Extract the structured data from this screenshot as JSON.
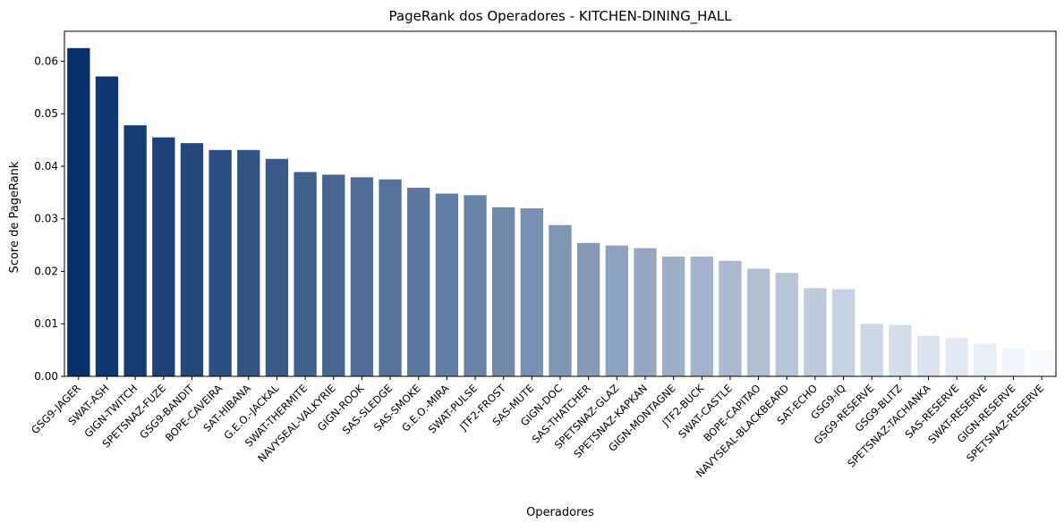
{
  "chart_data": {
    "type": "bar",
    "title": "PageRank dos Operadores - KITCHEN-DINING_HALL",
    "xlabel": "Operadores",
    "ylabel": "Score de PageRank",
    "ylim": [
      0,
      0.0657
    ],
    "yticks": [
      "0.00",
      "0.01",
      "0.02",
      "0.03",
      "0.04",
      "0.05",
      "0.06"
    ],
    "grid": false,
    "legend": "none",
    "palette": "Blues_r",
    "color_dark": "#08306b",
    "color_light": "#f7fbff",
    "categories": [
      "GSG9-JAGER",
      "SWAT-ASH",
      "GIGN-TWITCH",
      "SPETSNAZ-FUZE",
      "GSG9-BANDIT",
      "BOPE-CAVEIRA",
      "SAT-HIBANA",
      "G.E.O.-JACKAL",
      "SWAT-THERMITE",
      "NAVYSEAL-VALKYRIE",
      "GIGN-ROOK",
      "SAS-SLEDGE",
      "SAS-SMOKE",
      "G.E.O.-MIRA",
      "SWAT-PULSE",
      "JTF2-FROST",
      "SAS-MUTE",
      "GIGN-DOC",
      "SAS-THATCHER",
      "SPETSNAZ-GLAZ",
      "SPETSNAZ-KAPKAN",
      "GIGN-MONTAGNE",
      "JTF2-BUCK",
      "SWAT-CASTLE",
      "BOPE-CAPITAO",
      "NAVYSEAL-BLACKBEARD",
      "SAT-ECHO",
      "GSG9-IQ",
      "GSG9-RESERVE",
      "GSG9-BLITZ",
      "SPETSNAZ-TACHANKA",
      "SAS-RESERVE",
      "SWAT-RESERVE",
      "GIGN-RESERVE",
      "SPETSNAZ-RESERVE"
    ],
    "values": [
      0.0625,
      0.0571,
      0.0478,
      0.0455,
      0.0444,
      0.0431,
      0.0431,
      0.0414,
      0.0389,
      0.0384,
      0.0379,
      0.0375,
      0.0359,
      0.0348,
      0.0345,
      0.0322,
      0.032,
      0.0288,
      0.0254,
      0.0249,
      0.0244,
      0.0228,
      0.0228,
      0.022,
      0.0205,
      0.0197,
      0.0168,
      0.0166,
      0.01,
      0.0098,
      0.0077,
      0.0073,
      0.0062,
      0.0053,
      0.005
    ]
  }
}
